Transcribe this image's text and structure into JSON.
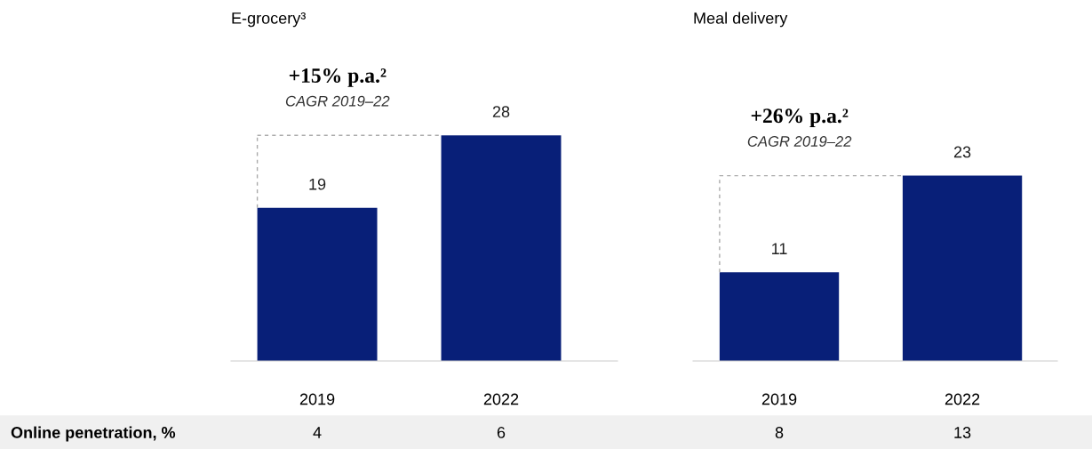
{
  "chart_data": [
    {
      "type": "bar",
      "title": "E-grocery³",
      "categories": [
        "2019",
        "2022"
      ],
      "values": [
        19,
        28
      ],
      "color": "#081f78",
      "data_labels": true,
      "grid": false,
      "ref_lines": [
        {
          "axis": "y",
          "value": 28,
          "color": "#aaaaaa",
          "line_style": "dashed"
        }
      ],
      "annotations": [
        "+15% p.a.²",
        "CAGR 2019–22"
      ]
    },
    {
      "type": "bar",
      "title": "Meal delivery",
      "categories": [
        "2019",
        "2022"
      ],
      "values": [
        11,
        23
      ],
      "color": "#081f78",
      "data_labels": true,
      "grid": false,
      "ref_lines": [
        {
          "axis": "y",
          "value": 23,
          "color": "#aaaaaa",
          "line_style": "dashed"
        }
      ],
      "annotations": [
        "+26% p.a.²",
        "CAGR 2019–22"
      ]
    },
    {
      "type": "other",
      "annotations": [
        "Online penetration, %",
        "4",
        "6",
        "8",
        "13"
      ]
    }
  ]
}
